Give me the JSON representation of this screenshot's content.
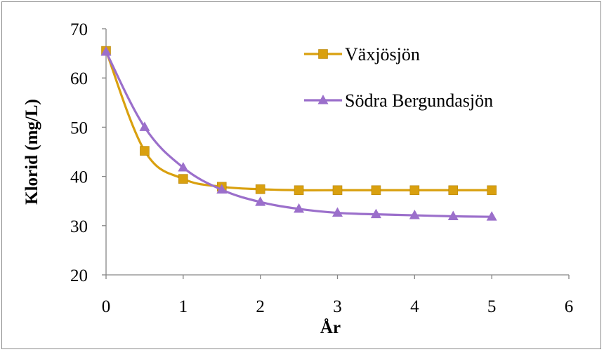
{
  "chart_data": {
    "type": "line",
    "title": "",
    "xlabel": "År",
    "ylabel": "Klorid (mg/L)",
    "xlim": [
      0,
      6
    ],
    "ylim": [
      20,
      70
    ],
    "x_ticks": [
      "0",
      "1",
      "2",
      "3",
      "4",
      "5",
      "6"
    ],
    "y_ticks": [
      "20",
      "30",
      "40",
      "50",
      "60",
      "70"
    ],
    "grid": false,
    "legend_position": "top-right",
    "x": [
      0,
      0.5,
      1,
      1.5,
      2,
      2.5,
      3,
      3.5,
      4,
      4.5,
      5
    ],
    "series": [
      {
        "name": "Växjösjön",
        "marker": "square",
        "color": "#D9A00F",
        "values": [
          65.5,
          45.2,
          39.5,
          37.9,
          37.4,
          37.2,
          37.2,
          37.2,
          37.2,
          37.2,
          37.2
        ]
      },
      {
        "name": "Södra Bergundasjön",
        "marker": "triangle",
        "color": "#9B6FCB",
        "values": [
          65.3,
          50.0,
          41.8,
          37.3,
          34.8,
          33.4,
          32.6,
          32.3,
          32.1,
          31.9,
          31.8
        ]
      }
    ]
  }
}
